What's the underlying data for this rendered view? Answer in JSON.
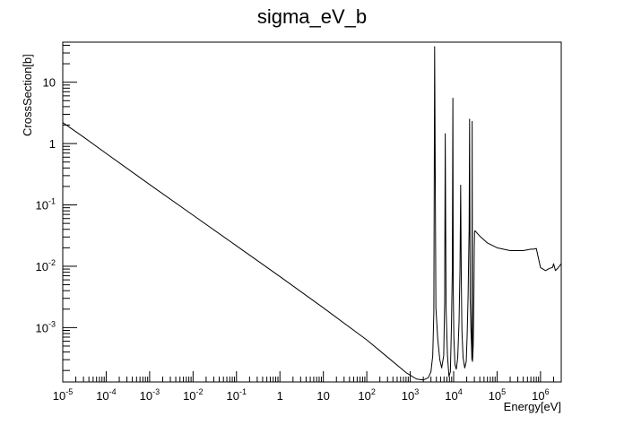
{
  "chart_data": {
    "type": "line",
    "title": "sigma_eV_b",
    "xlabel": "Energy[eV]",
    "ylabel": "CrossSection[b]",
    "xscale": "log",
    "yscale": "log",
    "xlim": [
      1e-05,
      3000000.0
    ],
    "ylim": [
      0.00013,
      45
    ],
    "grid": false,
    "x_ticks": [
      {
        "v": 1e-05,
        "base": "10",
        "exp": "-5"
      },
      {
        "v": 0.0001,
        "base": "10",
        "exp": "-4"
      },
      {
        "v": 0.001,
        "base": "10",
        "exp": "-3"
      },
      {
        "v": 0.01,
        "base": "10",
        "exp": "-2"
      },
      {
        "v": 0.1,
        "base": "10",
        "exp": "-1"
      },
      {
        "v": 1,
        "base": "1",
        "exp": ""
      },
      {
        "v": 10,
        "base": "10",
        "exp": ""
      },
      {
        "v": 100,
        "base": "10",
        "exp": "2"
      },
      {
        "v": 1000,
        "base": "10",
        "exp": "3"
      },
      {
        "v": 10000,
        "base": "10",
        "exp": "4"
      },
      {
        "v": 100000,
        "base": "10",
        "exp": "5"
      },
      {
        "v": 1000000,
        "base": "10",
        "exp": "6"
      }
    ],
    "y_ticks": [
      {
        "v": 0.001,
        "base": "10",
        "exp": "-3"
      },
      {
        "v": 0.01,
        "base": "10",
        "exp": "-2"
      },
      {
        "v": 0.1,
        "base": "10",
        "exp": "-1"
      },
      {
        "v": 1,
        "base": "1",
        "exp": ""
      },
      {
        "v": 10,
        "base": "10",
        "exp": ""
      }
    ],
    "series": [
      {
        "color": "#000000",
        "x": [
          1e-05,
          3e-05,
          0.0001,
          0.001,
          0.01,
          0.1,
          1,
          10,
          100,
          300,
          800,
          1400,
          2000,
          2600,
          3000,
          3300,
          3500,
          3650,
          3750,
          3900,
          4300,
          4800,
          5300,
          5900,
          6200,
          6400,
          6700,
          7200,
          7800,
          8400,
          8900,
          9300,
          9600,
          9800,
          10100,
          10700,
          11500,
          12400,
          13300,
          14000,
          14500,
          15000,
          15500,
          16500,
          18000,
          19500,
          20500,
          21500,
          22200,
          22700,
          23300,
          24000,
          25000,
          25800,
          26300,
          26700,
          27100,
          27600,
          28200,
          28800,
          29300,
          29800,
          30300,
          31000,
          40000,
          60000,
          100000,
          200000,
          400000,
          600000,
          700000,
          800000,
          1000000,
          1300000,
          1600000,
          1900000,
          2000000,
          2200000,
          2500000,
          3000000
        ],
        "y": [
          2.2,
          1.28,
          0.69,
          0.215,
          0.068,
          0.0215,
          0.0068,
          0.0021,
          0.00063,
          0.00033,
          0.000185,
          0.000145,
          0.00014,
          0.000152,
          0.00019,
          0.00035,
          0.0018,
          38,
          0.72,
          0.0021,
          0.00065,
          0.0003,
          0.00022,
          0.00035,
          0.0025,
          1.45,
          0.002,
          0.00035,
          0.00016,
          0.00019,
          0.0011,
          0.008,
          5.5,
          0.004,
          0.0007,
          0.00025,
          0.00021,
          0.00032,
          0.0012,
          0.009,
          0.21,
          0.006,
          0.0009,
          0.00032,
          0.00022,
          0.00028,
          0.0008,
          0.0032,
          0.015,
          0.04,
          2.5,
          0.003,
          0.0009,
          0.0005,
          0.0003,
          2.3,
          0.00028,
          0.00035,
          0.0005,
          0.0012,
          0.004,
          0.02,
          0.037,
          0.038,
          0.031,
          0.024,
          0.02,
          0.018,
          0.018,
          0.019,
          0.019,
          0.0195,
          0.0095,
          0.0085,
          0.0092,
          0.0096,
          0.011,
          0.0085,
          0.0093,
          0.011
        ]
      }
    ]
  }
}
